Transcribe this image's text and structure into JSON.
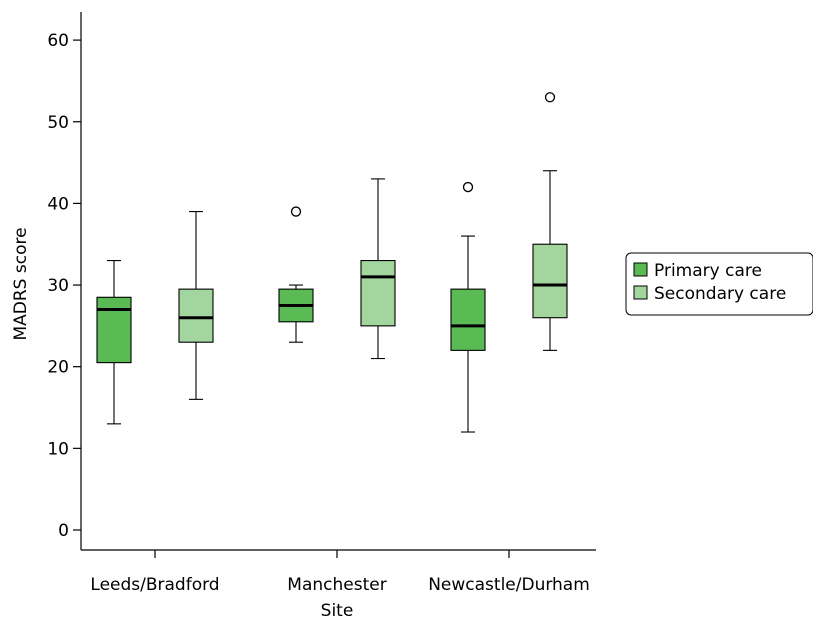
{
  "chart_data": {
    "type": "boxplot",
    "xlabel": "Site",
    "ylabel": "MADRS score",
    "ylim": [
      -3,
      63
    ],
    "yticks": [
      0,
      10,
      20,
      30,
      40,
      50,
      60
    ],
    "categories": [
      "Leeds/Bradford",
      "Manchester",
      "Newcastle/Durham"
    ],
    "legend_position": "right",
    "series": [
      {
        "name": "Primary care",
        "color": "#5abb55",
        "boxes": [
          {
            "whisker_low": 13,
            "q1": 20.5,
            "median": 27,
            "q3": 28.5,
            "whisker_high": 33,
            "outliers": []
          },
          {
            "whisker_low": 23,
            "q1": 25.5,
            "median": 27.5,
            "q3": 29.5,
            "whisker_high": 30,
            "outliers": [
              39
            ]
          },
          {
            "whisker_low": 12,
            "q1": 22,
            "median": 25,
            "q3": 29.5,
            "whisker_high": 36,
            "outliers": [
              42
            ]
          }
        ]
      },
      {
        "name": "Secondary care",
        "color": "#a3d69e",
        "boxes": [
          {
            "whisker_low": 16,
            "q1": 23,
            "median": 26,
            "q3": 29.5,
            "whisker_high": 39,
            "outliers": []
          },
          {
            "whisker_low": 21,
            "q1": 25,
            "median": 31,
            "q3": 33,
            "whisker_high": 43,
            "outliers": []
          },
          {
            "whisker_low": 22,
            "q1": 26,
            "median": 30,
            "q3": 35,
            "whisker_high": 44,
            "outliers": [
              53
            ]
          }
        ]
      }
    ]
  }
}
